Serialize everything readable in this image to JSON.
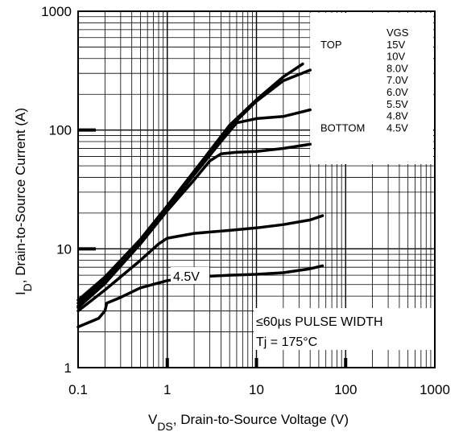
{
  "chart_data": {
    "type": "line",
    "title": "",
    "xlabel": {
      "main": "V",
      "sub": "DS",
      "rest": ", Drain-to-Source Voltage (V)"
    },
    "ylabel": {
      "main": "I",
      "sub": "D",
      "rest": ", Drain-to-Source Current (A)"
    },
    "xscale": "log",
    "yscale": "log",
    "xlim": [
      0.1,
      1000
    ],
    "ylim": [
      1,
      1000
    ],
    "xticks": [
      {
        "value": 0.1,
        "label": "0.1"
      },
      {
        "value": 1,
        "label": "1"
      },
      {
        "value": 10,
        "label": "10"
      },
      {
        "value": 100,
        "label": "100"
      },
      {
        "value": 1000,
        "label": "1000"
      }
    ],
    "yticks": [
      {
        "value": 1,
        "label": "1"
      },
      {
        "value": 10,
        "label": "10"
      },
      {
        "value": 100,
        "label": "100"
      },
      {
        "value": 1000,
        "label": "1000"
      }
    ],
    "grid": true,
    "legend": {
      "header": "VGS",
      "top_label": "TOP",
      "bottom_label": "BOTTOM",
      "values": [
        "15V",
        "10V",
        "8.0V",
        "7.0V",
        "6.0V",
        "5.5V",
        "4.8V",
        "4.5V"
      ],
      "placement": "top-right"
    },
    "annotations": {
      "curve_label": "4.5V",
      "pulse": "≤60µs PULSE WIDTH",
      "tj": "Tj = 175°C"
    },
    "series": [
      {
        "values": [
          [
            0.1,
            3.7
          ],
          [
            0.2,
            5.8
          ],
          [
            0.5,
            12
          ],
          [
            1,
            23
          ],
          [
            2,
            45
          ],
          [
            5,
            110
          ],
          [
            10,
            180
          ],
          [
            20,
            280
          ],
          [
            33,
            360
          ]
        ]
      },
      {
        "values": [
          [
            0.1,
            3.5
          ],
          [
            0.2,
            5.6
          ],
          [
            0.5,
            12
          ],
          [
            1,
            23
          ],
          [
            2,
            45
          ],
          [
            5,
            105
          ],
          [
            10,
            175
          ],
          [
            20,
            260
          ],
          [
            40,
            320
          ]
        ]
      },
      {
        "values": [
          [
            0.1,
            3.3
          ],
          [
            0.2,
            5.3
          ],
          [
            0.5,
            11.5
          ],
          [
            1,
            22
          ],
          [
            2,
            42
          ],
          [
            4,
            80
          ],
          [
            6,
            115
          ],
          [
            10,
            125
          ],
          [
            20,
            130
          ],
          [
            40,
            148
          ]
        ]
      },
      {
        "values": [
          [
            0.1,
            3.2
          ],
          [
            0.2,
            5.1
          ],
          [
            0.5,
            11
          ],
          [
            1,
            21
          ],
          [
            2,
            38
          ],
          [
            3,
            55
          ],
          [
            4,
            63
          ],
          [
            6,
            65
          ],
          [
            10,
            66
          ],
          [
            20,
            70
          ],
          [
            40,
            76
          ]
        ]
      },
      {
        "values": [
          [
            0.1,
            3.0
          ],
          [
            0.2,
            4.5
          ],
          [
            0.5,
            8
          ],
          [
            0.8,
            11
          ],
          [
            1,
            12.3
          ],
          [
            2,
            13.5
          ],
          [
            5,
            14.3
          ],
          [
            10,
            15
          ],
          [
            20,
            16
          ],
          [
            40,
            17.5
          ],
          [
            55,
            19
          ]
        ]
      },
      {
        "values": [
          [
            0.1,
            2.2
          ],
          [
            0.17,
            2.6
          ],
          [
            0.2,
            3.0
          ],
          [
            0.21,
            3.5
          ],
          [
            0.3,
            3.9
          ],
          [
            0.5,
            4.7
          ],
          [
            1,
            5.4
          ],
          [
            2,
            5.8
          ],
          [
            5,
            6.0
          ],
          [
            10,
            6.1
          ],
          [
            20,
            6.3
          ],
          [
            40,
            6.8
          ],
          [
            55,
            7.2
          ]
        ]
      }
    ]
  }
}
